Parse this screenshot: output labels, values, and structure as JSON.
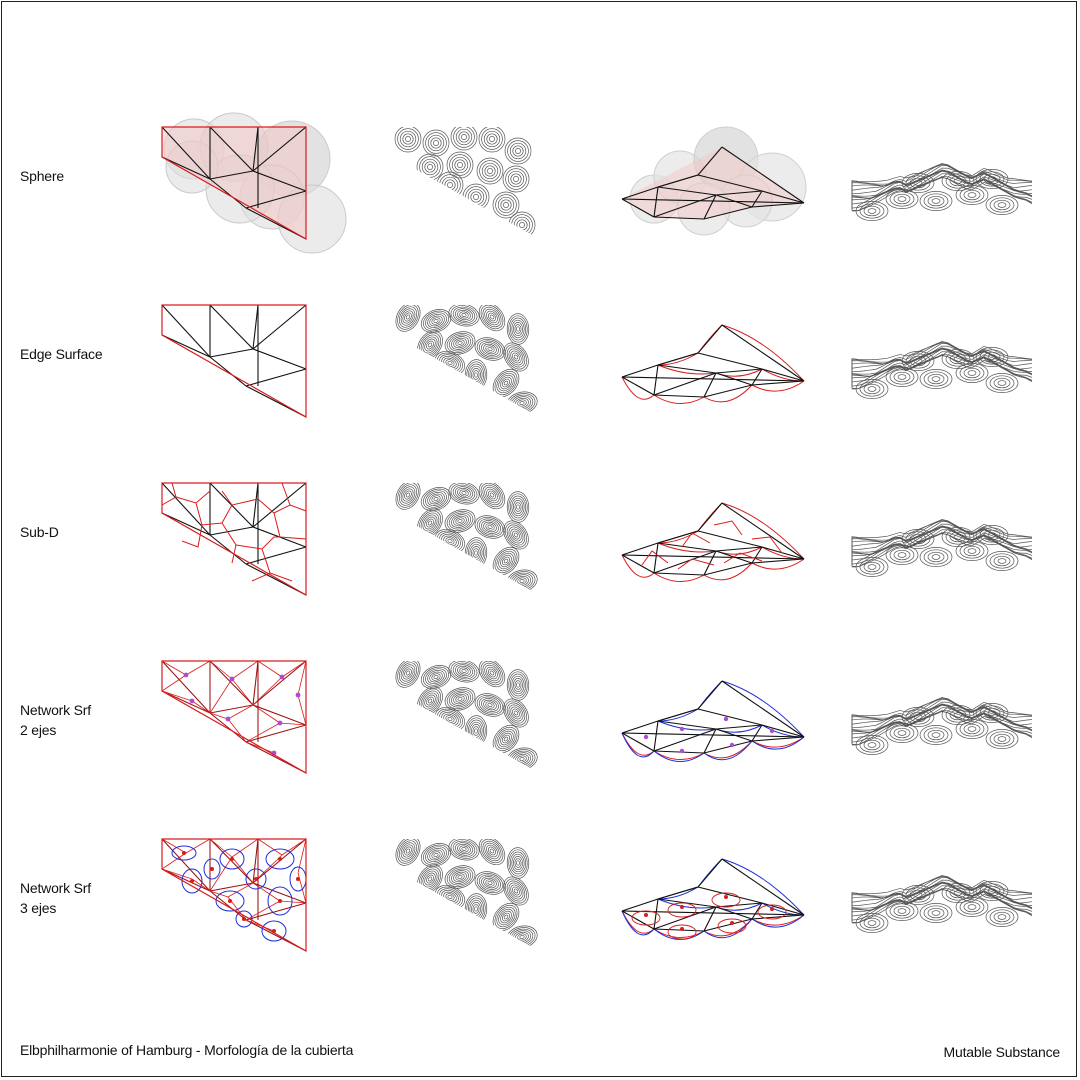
{
  "title": "Elbphilharmonie of Hamburg - Morfología de la cubierta",
  "credit": "Mutable Substance",
  "rows": [
    {
      "lines": [
        "Sphere"
      ],
      "method": "sphere"
    },
    {
      "lines": [
        "Edge Surface"
      ],
      "method": "edge"
    },
    {
      "lines": [
        "Sub-D"
      ],
      "method": "subd"
    },
    {
      "lines": [
        "Network Srf",
        "2 ejes"
      ],
      "method": "net2"
    },
    {
      "lines": [
        "Network Srf",
        "3 ejes"
      ],
      "method": "net3"
    }
  ],
  "columns": [
    "plan-diagram",
    "contour-plan",
    "axonometric-diagram",
    "contour-perspective"
  ],
  "colors": {
    "edge": "#111111",
    "boundary": "#d91c1c",
    "network": "#1e2fd6",
    "sphere_fill": "#f3c6c6",
    "sphere_shadow": "#9a9a9a",
    "contour": "#555555",
    "node": "#b04ad6"
  }
}
